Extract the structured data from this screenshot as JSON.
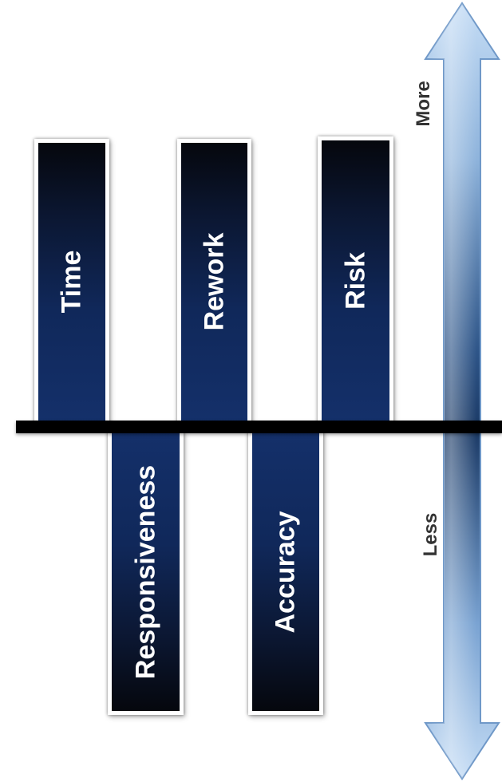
{
  "bars_above": [
    {
      "label": "Time"
    },
    {
      "label": "Rework"
    },
    {
      "label": "Risk"
    }
  ],
  "bars_below": [
    {
      "label": "Responsiveness"
    },
    {
      "label": "Accuracy"
    }
  ],
  "scale": {
    "top_label": "More",
    "bottom_label": "Less"
  },
  "colors": {
    "bar_dark": "#05070d",
    "bar_blue": "#14306a",
    "arrow_light": "#a9c9ec",
    "arrow_dark": "#1b3a66",
    "axis_line": "#000000"
  }
}
